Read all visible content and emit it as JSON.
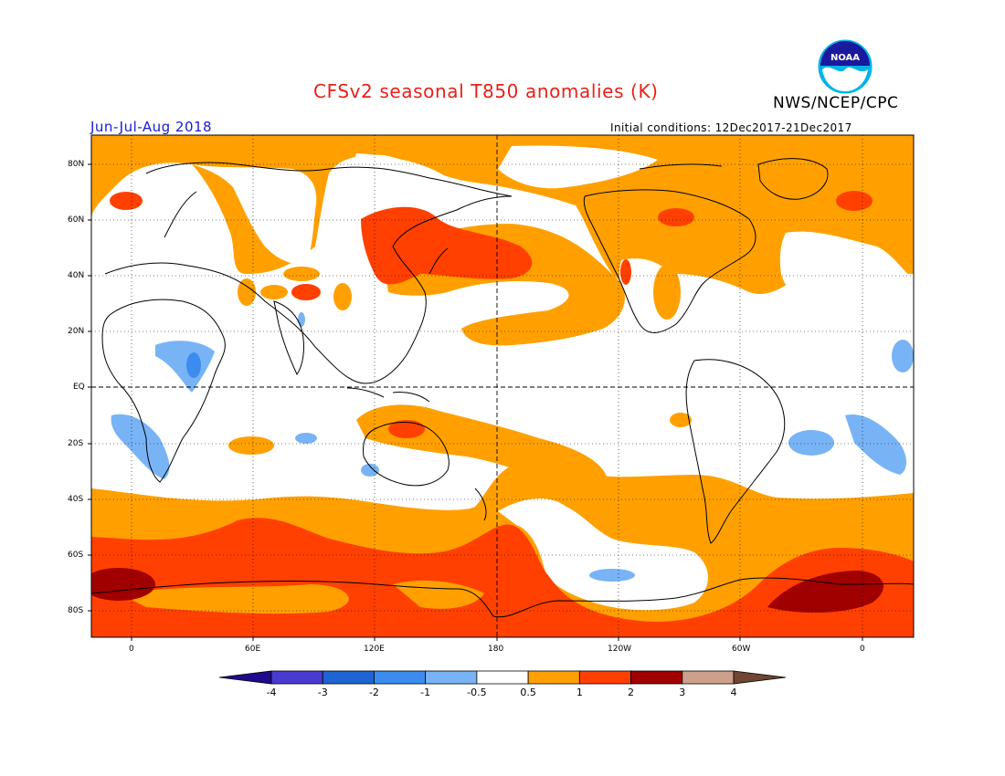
{
  "header": {
    "title": "CFSv2 seasonal T850 anomalies (K)",
    "agency": "NWS/NCEP/CPC",
    "logo_text": "NOAA",
    "period": "Jun-Jul-Aug 2018",
    "initial_conditions": "Initial conditions: 12Dec2017-21Dec2017"
  },
  "axes": {
    "lat_labels": [
      "80N",
      "60N",
      "40N",
      "20N",
      "EQ",
      "20S",
      "40S",
      "60S",
      "80S"
    ],
    "lon_labels": [
      "0",
      "60E",
      "120E",
      "180",
      "120W",
      "60W",
      "0"
    ]
  },
  "colorbar": {
    "labels": [
      "-4",
      "-3",
      "-2",
      "-1",
      "-0.5",
      "0.5",
      "1",
      "2",
      "3",
      "4"
    ],
    "colors": [
      "#1e0a8c",
      "#4b3ad0",
      "#1e64d2",
      "#3c8cf0",
      "#78b4f5",
      "#ffffff",
      "#ffa000",
      "#ff4000",
      "#a00000",
      "#cda08c",
      "#6e4632"
    ]
  }
}
